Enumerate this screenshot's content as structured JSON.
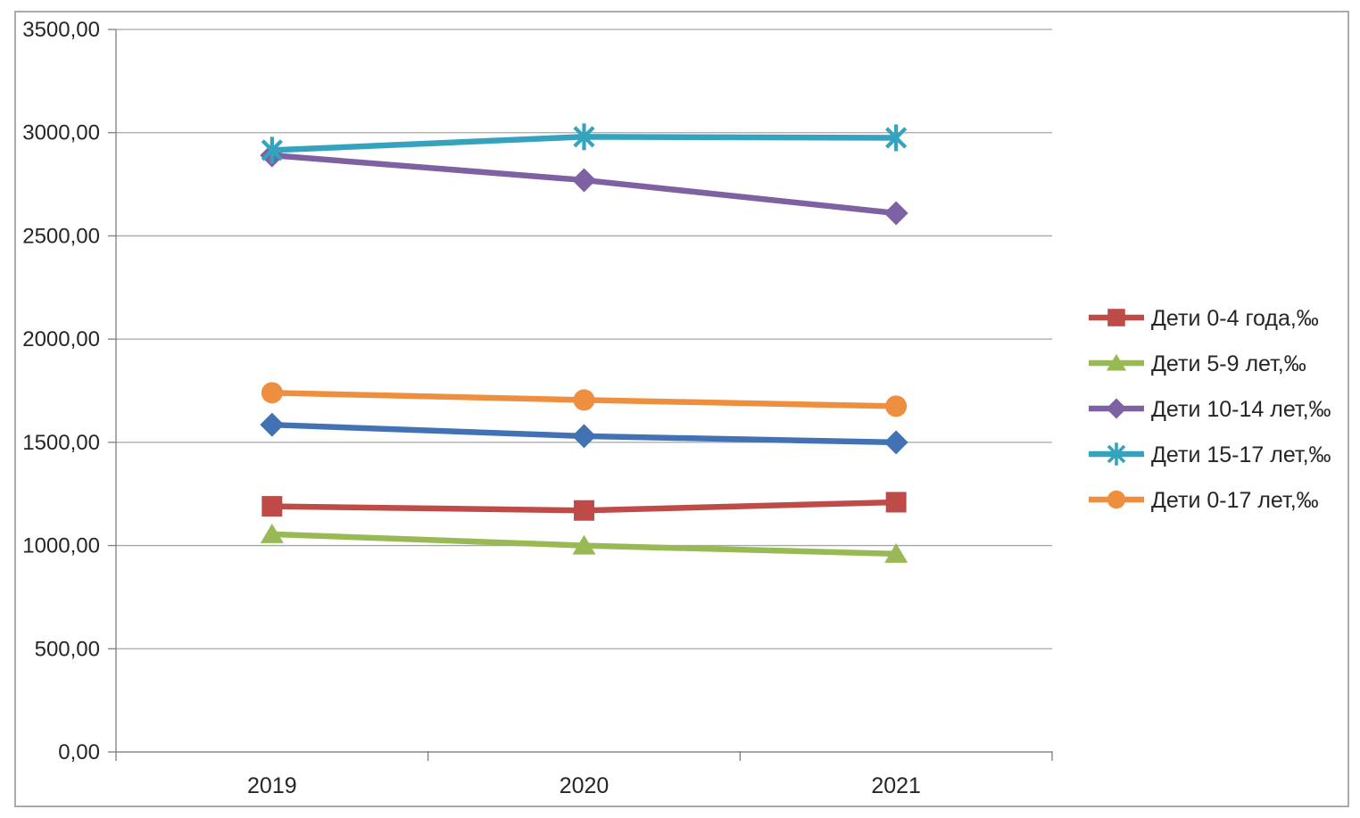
{
  "chart_data": {
    "type": "line",
    "title": "",
    "x": [
      "2019",
      "2020",
      "2021"
    ],
    "xlabel": "",
    "ylabel": "",
    "ylim": [
      0,
      3500
    ],
    "grid": true,
    "legend_position": "right",
    "yticks": [
      {
        "value": 0,
        "label": "0,00"
      },
      {
        "value": 500,
        "label": "500,00"
      },
      {
        "value": 1000,
        "label": "1000,00"
      },
      {
        "value": 1500,
        "label": "1500,00"
      },
      {
        "value": 2000,
        "label": "2000,00"
      },
      {
        "value": 2500,
        "label": "2500,00"
      },
      {
        "value": 3000,
        "label": "3000,00"
      },
      {
        "value": 3500,
        "label": "3500,00"
      }
    ],
    "series": [
      {
        "name": "",
        "in_legend": false,
        "marker": "diamond",
        "color": "#4272B4",
        "values": [
          1585,
          1530,
          1500
        ]
      },
      {
        "name": "Дети 0-4 года,‰",
        "in_legend": true,
        "marker": "square",
        "color": "#BE4B48",
        "values": [
          1190,
          1170,
          1210
        ]
      },
      {
        "name": "Дети 5-9 лет,‰",
        "in_legend": true,
        "marker": "triangle",
        "color": "#98B954",
        "values": [
          1055,
          1000,
          960
        ]
      },
      {
        "name": "Дети 10-14 лет,‰",
        "in_legend": true,
        "marker": "diamond",
        "color": "#7E61A3",
        "values": [
          2890,
          2770,
          2610
        ]
      },
      {
        "name": "Дети 15-17 лет,‰",
        "in_legend": true,
        "marker": "asterisk",
        "color": "#35A2BE",
        "values": [
          2915,
          2980,
          2975
        ]
      },
      {
        "name": "Дети 0-17 лет,‰",
        "in_legend": true,
        "marker": "circle",
        "color": "#EE8E3F",
        "values": [
          1740,
          1705,
          1675
        ]
      }
    ],
    "colors": {
      "grid": "#A6A6A6",
      "axis": "#7F7F7F",
      "text": "#262626",
      "frame_border": "#ABABAB",
      "background": "#FFFFFF"
    }
  }
}
